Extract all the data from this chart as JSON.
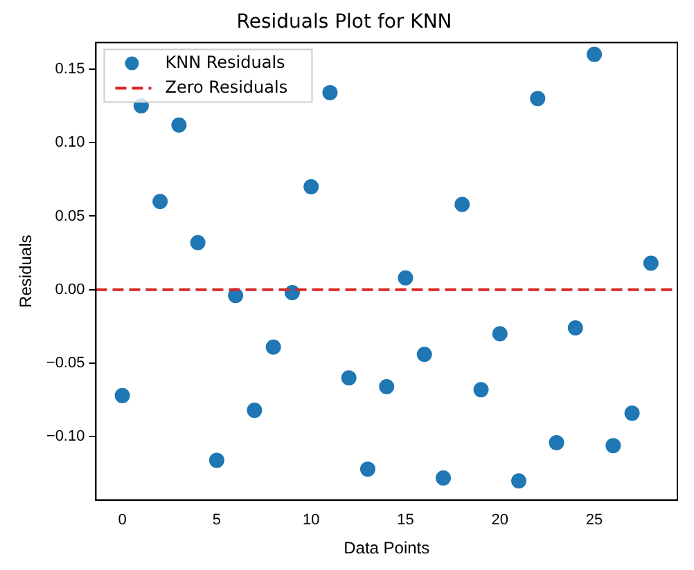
{
  "chart_data": {
    "type": "scatter",
    "title": "Residuals Plot for KNN",
    "xlabel": "Data Points",
    "ylabel": "Residuals",
    "x": [
      0,
      1,
      2,
      3,
      4,
      5,
      6,
      7,
      8,
      9,
      10,
      11,
      12,
      13,
      14,
      15,
      16,
      17,
      18,
      19,
      20,
      21,
      22,
      23,
      24,
      25,
      26,
      27,
      28
    ],
    "series": [
      {
        "name": "KNN Residuals",
        "color": "#1f77b4",
        "values": [
          -0.072,
          0.125,
          0.06,
          0.112,
          0.032,
          -0.116,
          -0.004,
          -0.082,
          -0.039,
          -0.002,
          0.07,
          0.134,
          -0.06,
          -0.122,
          -0.066,
          0.008,
          -0.044,
          -0.128,
          0.058,
          -0.068,
          -0.03,
          -0.13,
          0.13,
          -0.104,
          -0.026,
          0.16,
          -0.106,
          -0.084,
          0.018
        ]
      }
    ],
    "ref_lines": [
      {
        "axis": "y",
        "value": 0,
        "label": "Zero Residuals",
        "color": "#d62728",
        "line_style": "dashed"
      }
    ],
    "xlim": [
      -1.4,
      29.4
    ],
    "xticks": [
      0,
      5,
      10,
      15,
      20,
      25
    ],
    "ylim": [
      -0.143,
      0.168
    ],
    "yticks": [
      {
        "value": -0.1,
        "label": "−0.10"
      },
      {
        "value": -0.05,
        "label": "−0.05"
      },
      {
        "value": 0,
        "label": "0.00"
      },
      {
        "value": 0.05,
        "label": "0.05"
      },
      {
        "value": 0.1,
        "label": "0.10"
      },
      {
        "value": 0.15,
        "label": "0.15"
      }
    ],
    "marker": "circle",
    "grid": false,
    "legend": "top left"
  }
}
